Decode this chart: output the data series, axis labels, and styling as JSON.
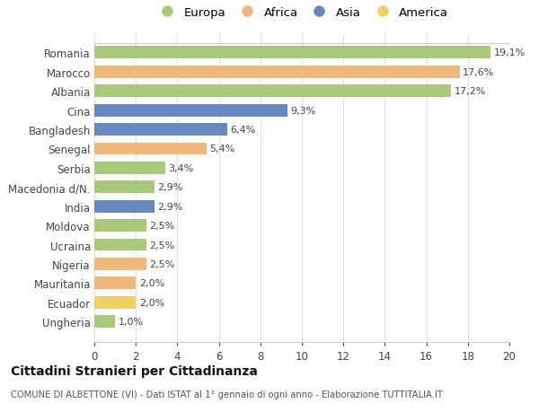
{
  "countries": [
    "Romania",
    "Marocco",
    "Albania",
    "Cina",
    "Bangladesh",
    "Senegal",
    "Serbia",
    "Macedonia d/N.",
    "India",
    "Moldova",
    "Ucraina",
    "Nigeria",
    "Mauritania",
    "Ecuador",
    "Ungheria"
  ],
  "values": [
    19.1,
    17.6,
    17.2,
    9.3,
    6.4,
    5.4,
    3.4,
    2.9,
    2.9,
    2.5,
    2.5,
    2.5,
    2.0,
    2.0,
    1.0
  ],
  "labels": [
    "19,1%",
    "17,6%",
    "17,2%",
    "9,3%",
    "6,4%",
    "5,4%",
    "3,4%",
    "2,9%",
    "2,9%",
    "2,5%",
    "2,5%",
    "2,5%",
    "2,0%",
    "2,0%",
    "1,0%"
  ],
  "continents": [
    "Europa",
    "Africa",
    "Europa",
    "Asia",
    "Asia",
    "Africa",
    "Europa",
    "Europa",
    "Asia",
    "Europa",
    "Europa",
    "Africa",
    "Africa",
    "America",
    "Europa"
  ],
  "continent_colors": {
    "Europa": "#a8c87a",
    "Africa": "#f0b87a",
    "Asia": "#6888c0",
    "America": "#f0d060"
  },
  "legend_order": [
    "Europa",
    "Africa",
    "Asia",
    "America"
  ],
  "title": "Cittadini Stranieri per Cittadinanza",
  "subtitle": "COMUNE DI ALBETTONE (VI) - Dati ISTAT al 1° gennaio di ogni anno - Elaborazione TUTTITALIA.IT",
  "xlim": [
    0,
    20
  ],
  "xticks": [
    0,
    2,
    4,
    6,
    8,
    10,
    12,
    14,
    16,
    18,
    20
  ],
  "background_color": "#ffffff",
  "grid_color": "#e0e0e0",
  "bar_height": 0.65,
  "label_fontsize": 8,
  "ytick_fontsize": 8.5,
  "xtick_fontsize": 8.5
}
